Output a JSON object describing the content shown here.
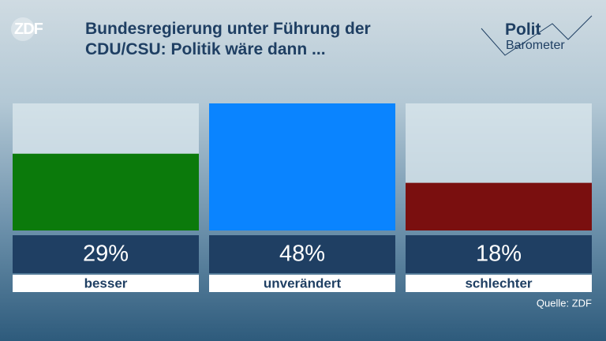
{
  "logo": "ZDF",
  "brand": {
    "top": "Polit",
    "bottom": "Barometer"
  },
  "chart_data": {
    "type": "bar",
    "title": "Bundesregierung unter Führung der CDU/CSU: Politik wäre dann ...",
    "categories": [
      "besser",
      "unverändert",
      "schlechter"
    ],
    "values": [
      29,
      48,
      18
    ],
    "value_labels": [
      "29%",
      "48%",
      "18%"
    ],
    "colors": [
      "#0b7a0b",
      "#0a84ff",
      "#7a0f0f"
    ],
    "source": "Quelle: ZDF"
  }
}
